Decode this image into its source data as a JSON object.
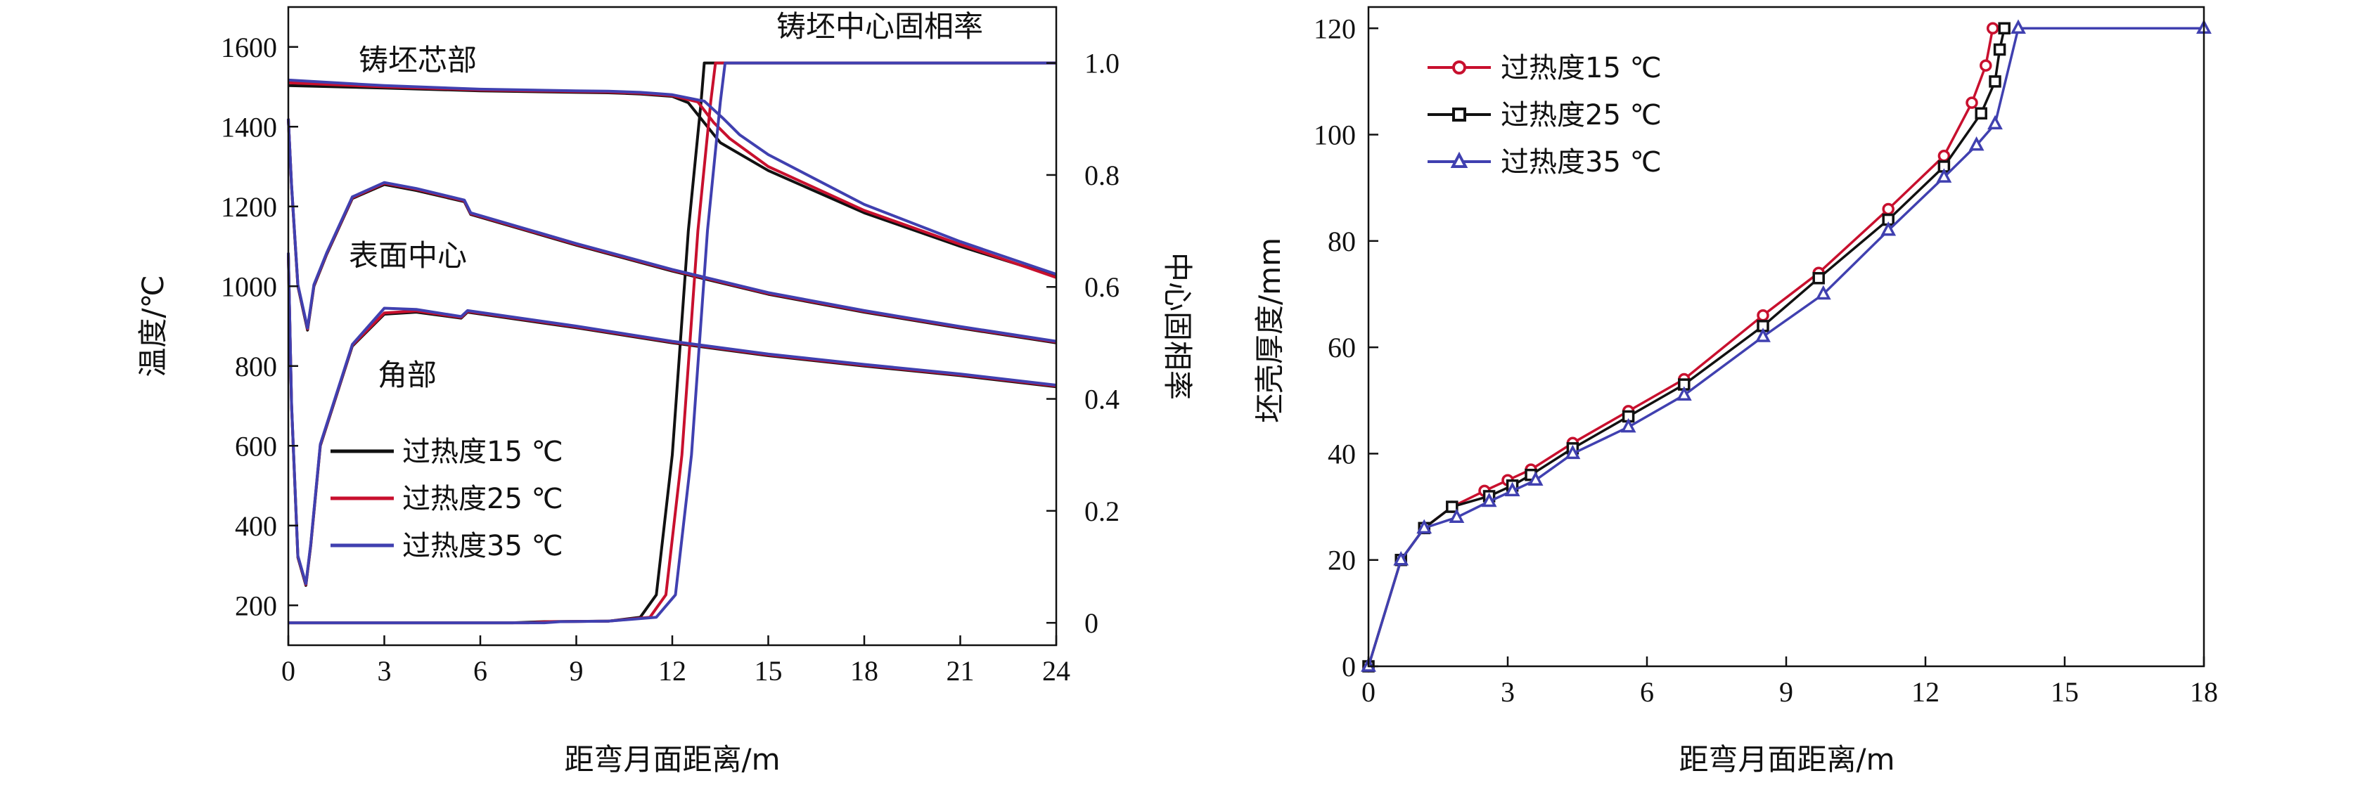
{
  "chart_data": [
    {
      "type": "line",
      "xlabel": "距弯月面距离/m",
      "ylabel": "温度/℃",
      "y2label": "中心固相率",
      "xlim": [
        0,
        24
      ],
      "ylim": [
        100,
        1700
      ],
      "y2lim": [
        -0.04,
        1.1
      ],
      "x_ticks": [
        0,
        3,
        6,
        9,
        12,
        15,
        18,
        21,
        24
      ],
      "y_ticks": [
        200,
        400,
        600,
        800,
        1000,
        1200,
        1400,
        1600
      ],
      "y2_ticks": [
        0,
        0.2,
        0.4,
        0.6,
        0.8,
        1.0
      ],
      "y2_tick_labels": [
        "0",
        "0.2",
        "0.4",
        "0.6",
        "0.8",
        "1.0"
      ],
      "legend_position": "lower-left",
      "annotations": [
        "铸坯芯部",
        "表面中心",
        "角部",
        "铸坯中心固相率"
      ],
      "series": [
        {
          "name": "过热度15 ℃",
          "color": "#111111",
          "core": [
            [
              0,
              1503
            ],
            [
              3,
              1497
            ],
            [
              6,
              1490
            ],
            [
              9,
              1486
            ],
            [
              10,
              1485
            ],
            [
              11,
              1482
            ],
            [
              12,
              1476
            ],
            [
              12.5,
              1460
            ],
            [
              13,
              1410
            ],
            [
              13.5,
              1360
            ],
            [
              15,
              1290
            ],
            [
              18,
              1184
            ],
            [
              21,
              1100
            ],
            [
              24,
              1025
            ]
          ],
          "surface": [
            [
              0,
              1420
            ],
            [
              0.1,
              1250
            ],
            [
              0.3,
              1000
            ],
            [
              0.6,
              890
            ],
            [
              0.8,
              1000
            ],
            [
              1.2,
              1080
            ],
            [
              2,
              1220
            ],
            [
              3,
              1255
            ],
            [
              4,
              1240
            ],
            [
              5.5,
              1212
            ],
            [
              5.7,
              1180
            ],
            [
              9,
              1103
            ],
            [
              12,
              1038
            ],
            [
              15,
              980
            ],
            [
              18,
              935
            ],
            [
              21,
              895
            ],
            [
              24,
              858
            ]
          ],
          "corner": [
            [
              0,
              1080
            ],
            [
              0.1,
              700
            ],
            [
              0.3,
              320
            ],
            [
              0.55,
              250
            ],
            [
              0.7,
              350
            ],
            [
              1,
              600
            ],
            [
              2,
              850
            ],
            [
              3,
              930
            ],
            [
              4,
              935
            ],
            [
              5.4,
              920
            ],
            [
              5.6,
              935
            ],
            [
              9,
              896
            ],
            [
              12,
              858
            ],
            [
              15,
              826
            ],
            [
              18,
              800
            ],
            [
              21,
              776
            ],
            [
              24,
              748
            ]
          ],
          "fraction": [
            [
              0,
              0
            ],
            [
              7,
              0
            ],
            [
              8,
              0.002
            ],
            [
              10,
              0.003
            ],
            [
              11,
              0.01
            ],
            [
              11.5,
              0.05
            ],
            [
              12,
              0.3
            ],
            [
              12.5,
              0.7
            ],
            [
              12.9,
              0.93
            ],
            [
              13.0,
              1.0
            ],
            [
              24,
              1.0
            ]
          ]
        },
        {
          "name": "过热度25 ℃",
          "color": "#c8102e",
          "core": [
            [
              0,
              1510
            ],
            [
              3,
              1500
            ],
            [
              6,
              1492
            ],
            [
              9,
              1488
            ],
            [
              10,
              1487
            ],
            [
              11,
              1484
            ],
            [
              12,
              1478
            ],
            [
              12.8,
              1462
            ],
            [
              13.3,
              1410
            ],
            [
              13.8,
              1370
            ],
            [
              15,
              1300
            ],
            [
              18,
              1190
            ],
            [
              21,
              1105
            ],
            [
              24,
              1022
            ]
          ],
          "surface": [
            [
              0,
              1420
            ],
            [
              0.1,
              1252
            ],
            [
              0.3,
              1002
            ],
            [
              0.6,
              893
            ],
            [
              0.8,
              1002
            ],
            [
              1.2,
              1082
            ],
            [
              2,
              1222
            ],
            [
              3,
              1258
            ],
            [
              4,
              1243
            ],
            [
              5.5,
              1214
            ],
            [
              5.7,
              1182
            ],
            [
              9,
              1105
            ],
            [
              12,
              1040
            ],
            [
              15,
              982
            ],
            [
              18,
              937
            ],
            [
              21,
              897
            ],
            [
              24,
              860
            ]
          ],
          "corner": [
            [
              0,
              1082
            ],
            [
              0.1,
              702
            ],
            [
              0.3,
              322
            ],
            [
              0.55,
              252
            ],
            [
              0.7,
              352
            ],
            [
              1,
              602
            ],
            [
              2,
              852
            ],
            [
              3,
              933
            ],
            [
              4,
              938
            ],
            [
              5.4,
              922
            ],
            [
              5.6,
              937
            ],
            [
              9,
              898
            ],
            [
              12,
              860
            ],
            [
              15,
              828
            ],
            [
              18,
              802
            ],
            [
              21,
              778
            ],
            [
              24,
              750
            ]
          ],
          "fraction": [
            [
              0,
              0
            ],
            [
              7.5,
              0
            ],
            [
              8.2,
              0.002
            ],
            [
              10,
              0.003
            ],
            [
              11.3,
              0.01
            ],
            [
              11.8,
              0.05
            ],
            [
              12.3,
              0.3
            ],
            [
              12.8,
              0.7
            ],
            [
              13.2,
              0.93
            ],
            [
              13.35,
              1.0
            ],
            [
              24,
              1.0
            ]
          ]
        },
        {
          "name": "过热度35 ℃",
          "color": "#4040b0",
          "core": [
            [
              0,
              1517
            ],
            [
              3,
              1503
            ],
            [
              6,
              1494
            ],
            [
              9,
              1490
            ],
            [
              10,
              1489
            ],
            [
              11,
              1486
            ],
            [
              12,
              1480
            ],
            [
              13,
              1464
            ],
            [
              13.6,
              1420
            ],
            [
              14.1,
              1380
            ],
            [
              15,
              1330
            ],
            [
              18,
              1205
            ],
            [
              21,
              1112
            ],
            [
              24,
              1030
            ]
          ],
          "surface": [
            [
              0,
              1420
            ],
            [
              0.1,
              1254
            ],
            [
              0.3,
              1004
            ],
            [
              0.6,
              895
            ],
            [
              0.8,
              1004
            ],
            [
              1.2,
              1084
            ],
            [
              2,
              1224
            ],
            [
              3,
              1260
            ],
            [
              4,
              1245
            ],
            [
              5.5,
              1216
            ],
            [
              5.7,
              1184
            ],
            [
              9,
              1107
            ],
            [
              12,
              1042
            ],
            [
              15,
              984
            ],
            [
              18,
              939
            ],
            [
              21,
              899
            ],
            [
              24,
              862
            ]
          ],
          "corner": [
            [
              0,
              1084
            ],
            [
              0.1,
              704
            ],
            [
              0.3,
              324
            ],
            [
              0.55,
              254
            ],
            [
              0.7,
              354
            ],
            [
              1,
              604
            ],
            [
              2,
              854
            ],
            [
              3,
              945
            ],
            [
              4,
              942
            ],
            [
              5.4,
              924
            ],
            [
              5.6,
              939
            ],
            [
              9,
              900
            ],
            [
              12,
              862
            ],
            [
              15,
              830
            ],
            [
              18,
              804
            ],
            [
              21,
              780
            ],
            [
              24,
              752
            ]
          ],
          "fraction": [
            [
              0,
              0
            ],
            [
              8,
              0
            ],
            [
              8.5,
              0.002
            ],
            [
              10,
              0.003
            ],
            [
              11.5,
              0.01
            ],
            [
              12.1,
              0.05
            ],
            [
              12.6,
              0.3
            ],
            [
              13.1,
              0.7
            ],
            [
              13.5,
              0.93
            ],
            [
              13.65,
              1.0
            ],
            [
              24,
              1.0
            ]
          ]
        }
      ]
    },
    {
      "type": "line",
      "xlabel": "距弯月面距离/m",
      "ylabel": "坯壳厚度/mm",
      "xlim": [
        0,
        18
      ],
      "ylim": [
        0,
        124
      ],
      "x_ticks": [
        0,
        3,
        6,
        9,
        12,
        15,
        18
      ],
      "y_ticks": [
        0,
        20,
        40,
        60,
        80,
        100,
        120
      ],
      "legend_position": "top-left",
      "series": [
        {
          "name": "过热度15 ℃",
          "color": "#c8102e",
          "marker": "circle",
          "points": [
            [
              0,
              0
            ],
            [
              0.7,
              20
            ],
            [
              1.2,
              26
            ],
            [
              1.8,
              30
            ],
            [
              2.5,
              33
            ],
            [
              3.0,
              35
            ],
            [
              3.5,
              37
            ],
            [
              4.4,
              42
            ],
            [
              5.6,
              48
            ],
            [
              6.8,
              54
            ],
            [
              8.5,
              66
            ],
            [
              9.7,
              74
            ],
            [
              11.2,
              86
            ],
            [
              12.4,
              96
            ],
            [
              13.0,
              106
            ],
            [
              13.3,
              113
            ],
            [
              13.45,
              120
            ]
          ]
        },
        {
          "name": "过热度25 ℃",
          "color": "#111111",
          "marker": "square",
          "points": [
            [
              0,
              0
            ],
            [
              0.7,
              20
            ],
            [
              1.2,
              26
            ],
            [
              1.8,
              30
            ],
            [
              2.6,
              32
            ],
            [
              3.1,
              34
            ],
            [
              3.5,
              36
            ],
            [
              4.4,
              41
            ],
            [
              5.6,
              47
            ],
            [
              6.8,
              53
            ],
            [
              8.5,
              64
            ],
            [
              9.7,
              73
            ],
            [
              11.2,
              84
            ],
            [
              12.4,
              94
            ],
            [
              13.2,
              104
            ],
            [
              13.5,
              110
            ],
            [
              13.6,
              116
            ],
            [
              13.7,
              120
            ]
          ]
        },
        {
          "name": "过热度35 ℃",
          "color": "#4040b0",
          "marker": "triangle",
          "points": [
            [
              0,
              0
            ],
            [
              0.7,
              20
            ],
            [
              1.2,
              26
            ],
            [
              1.9,
              28
            ],
            [
              2.6,
              31
            ],
            [
              3.1,
              33
            ],
            [
              3.6,
              35
            ],
            [
              4.4,
              40
            ],
            [
              5.6,
              45
            ],
            [
              6.8,
              51
            ],
            [
              8.5,
              62
            ],
            [
              9.8,
              70
            ],
            [
              11.2,
              82
            ],
            [
              12.4,
              92
            ],
            [
              13.1,
              98
            ],
            [
              13.5,
              102
            ],
            [
              14.0,
              120
            ],
            [
              18,
              120
            ]
          ]
        }
      ]
    }
  ]
}
